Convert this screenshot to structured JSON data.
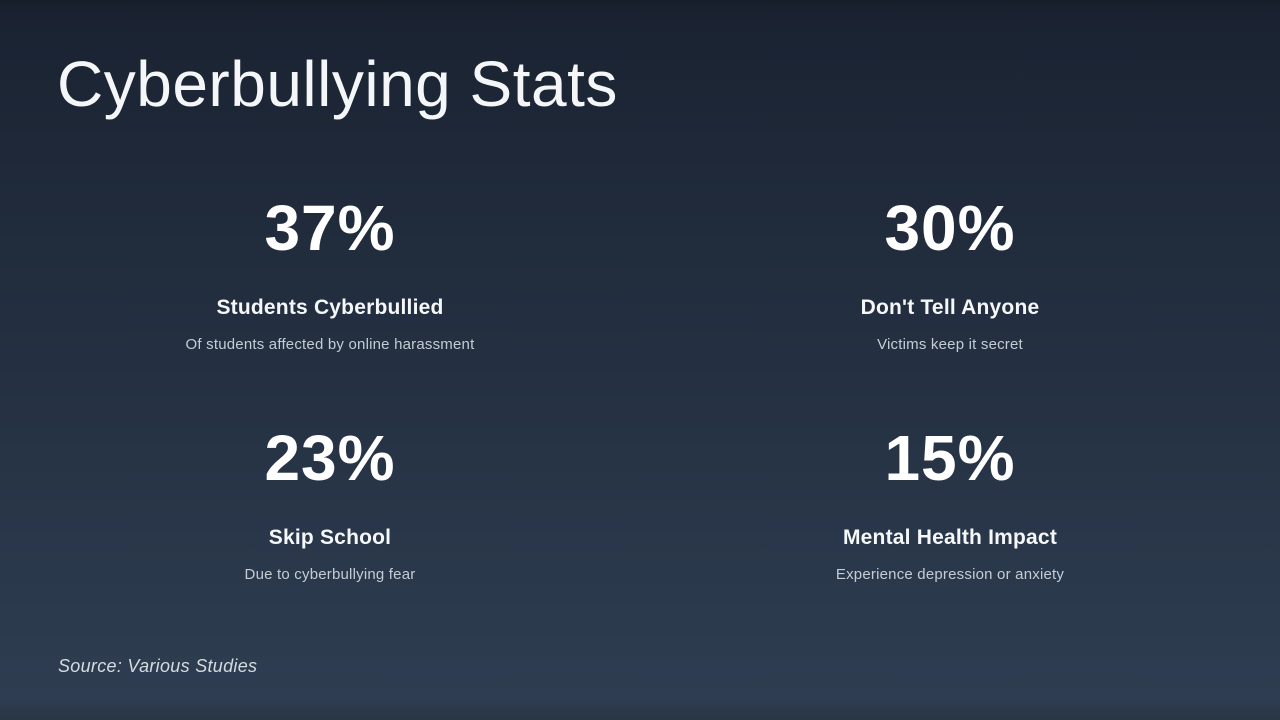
{
  "slide": {
    "title": "Cyberbullying Stats",
    "source": "Source: Various Studies",
    "background_top_color": "#1a2231",
    "background_bottom_color": "#2e3d51",
    "heading_text_color": "#f4f6f8",
    "stat_text_color": "#ffffff",
    "muted_text_color": "#c5ccd4"
  },
  "stats": [
    {
      "value": "37%",
      "label": "Students Cyberbullied",
      "description": "Of students affected by online harassment"
    },
    {
      "value": "30%",
      "label": "Don't Tell Anyone",
      "description": "Victims keep it secret"
    },
    {
      "value": "23%",
      "label": "Skip School",
      "description": "Due to cyberbullying fear"
    },
    {
      "value": "15%",
      "label": "Mental Health Impact",
      "description": "Experience depression or anxiety"
    }
  ]
}
